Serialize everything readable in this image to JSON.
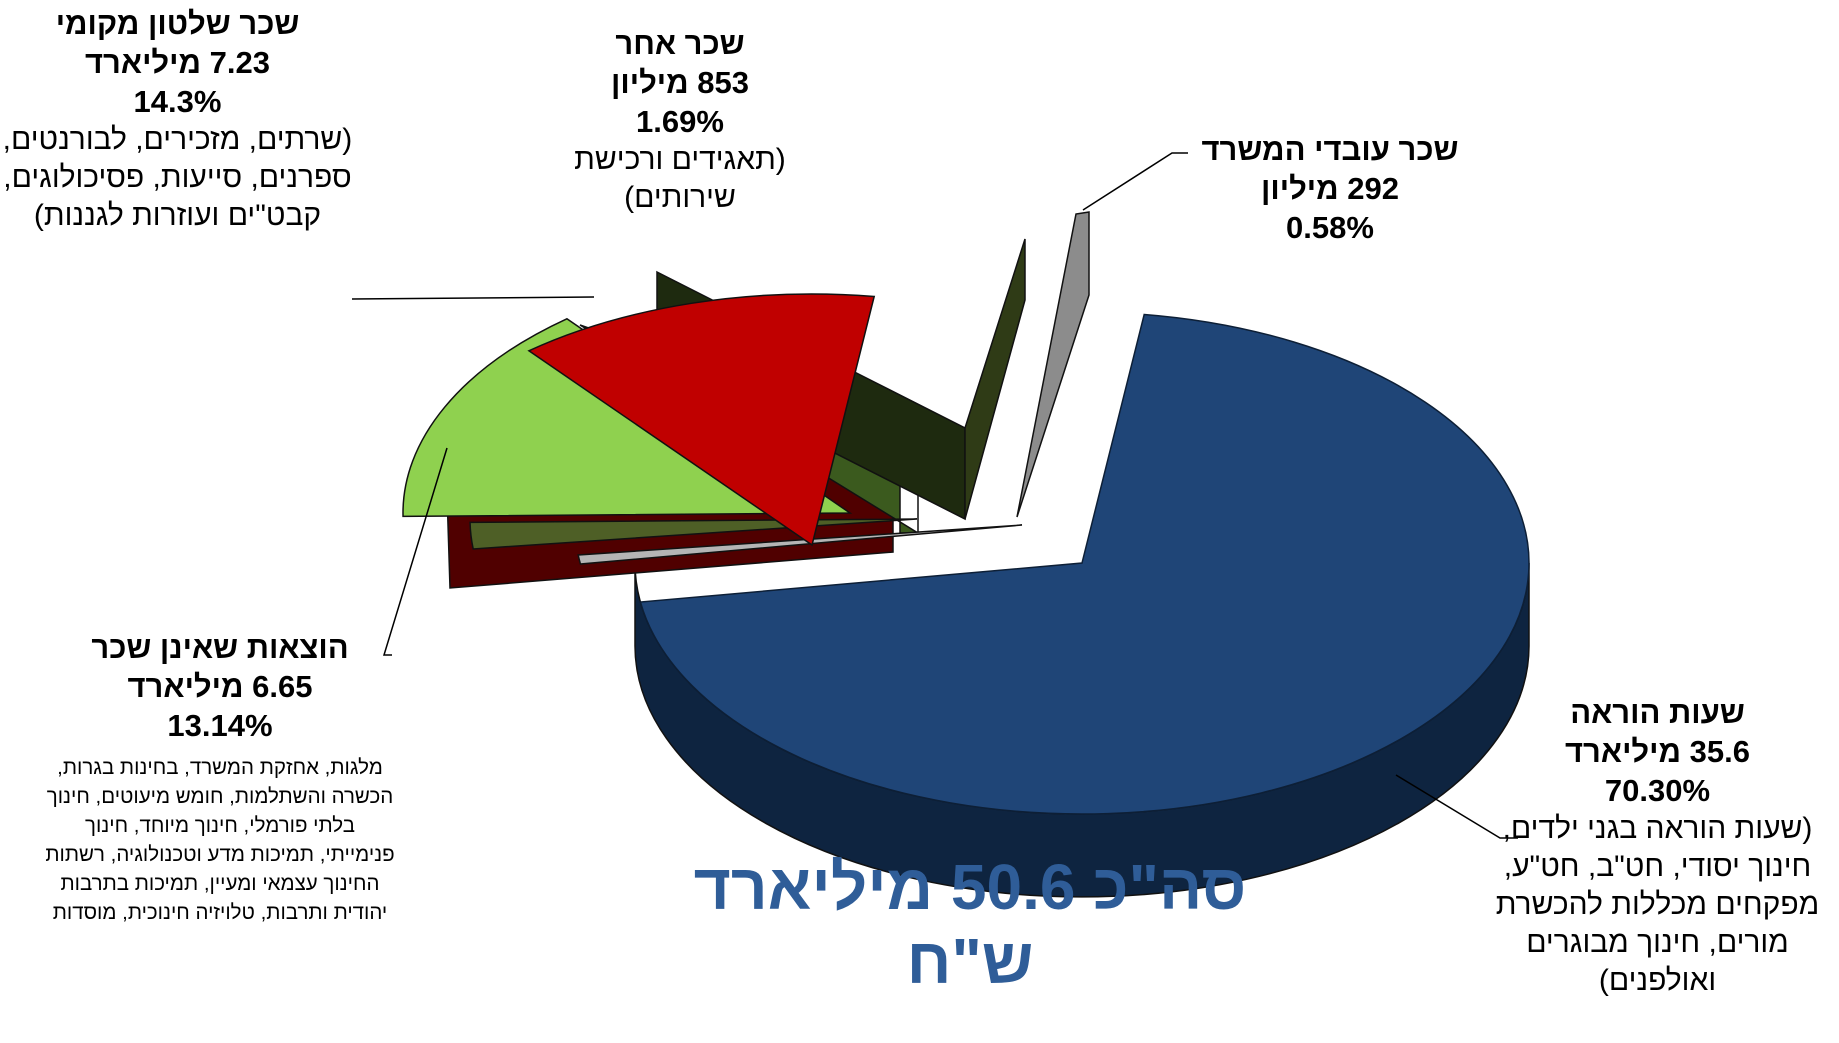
{
  "chart_data": {
    "type": "pie",
    "style": "3d-exploded",
    "total_label": "סה\"כ 50.6 מיליארד ש\"ח",
    "slices": [
      {
        "name": "שעות הוראה",
        "amount": "35.6 מיליארד",
        "percent_label": "70.30%",
        "value": 70.3,
        "description": "(שעות הוראה בגני ילדים, חינוך יסודי, חט\"ב, חט\"ע, מפקחים מכללות להכשרת מורים, חינוך מבוגרים ואולפנים)",
        "color": "#1f4577"
      },
      {
        "name": "שכר עובדי המשרד",
        "amount": "292 מיליון",
        "percent_label": "0.58%",
        "value": 0.58,
        "description": "",
        "color": "#b5b5b5"
      },
      {
        "name": "שכר אחר",
        "amount": "853 מיליון",
        "percent_label": "1.69%",
        "value": 1.69,
        "description": "(תאגידים ורכישת שירותים)",
        "color": "#4e5f26"
      },
      {
        "name": "שכר שלטון מקומי",
        "amount": "7.23 מיליארד",
        "percent_label": "14.3%",
        "value": 14.3,
        "description": "(שרתים, מזכירים, לבורנטים, ספרנים, סייעות, פסיכולוגים, קבט\"ים ועוזרות לגננות)",
        "color": "#8fd14f"
      },
      {
        "name": "הוצאות שאינן שכר",
        "amount": "6.65 מיליארד",
        "percent_label": "13.14%",
        "value": 13.14,
        "description": "מלגות, אחזקת המשרד, בחינות בגרות, הכשרה והשתלמות, חומש מיעוטים, חינוך בלתי פורמלי, חינוך מיוחד, חינוך פנימייתי, תמיכות מדע וטכנולוגיה, רשתות החינוך עצמאי ומעיין, תמיכות בתרבות יהודית ותרבות, טלויזיה חינוכית, מוסדות",
        "color": "#c00000"
      }
    ]
  }
}
